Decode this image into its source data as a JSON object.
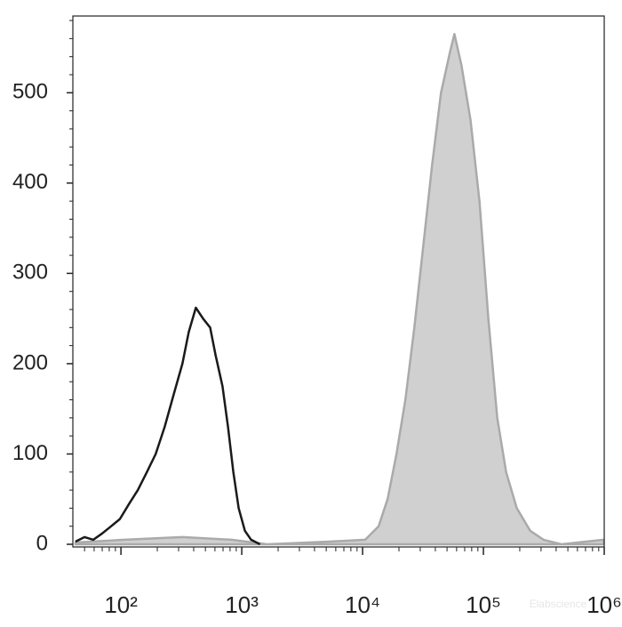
{
  "chart_data": {
    "type": "histogram-overlay",
    "xscale": "log",
    "xlim": [
      40,
      1000000
    ],
    "ylim": [
      0,
      585
    ],
    "xticks": [
      {
        "value": 100,
        "label": "10²"
      },
      {
        "value": 1000,
        "label": "10³"
      },
      {
        "value": 10000,
        "label": "10⁴"
      },
      {
        "value": 100000,
        "label": "10⁵"
      },
      {
        "value": 1000000,
        "label": "10⁶"
      }
    ],
    "xticks_minor": [
      50,
      60,
      70,
      80,
      90,
      200,
      300,
      400,
      500,
      600,
      700,
      800,
      900,
      2000,
      3000,
      4000,
      5000,
      6000,
      7000,
      8000,
      9000,
      20000,
      30000,
      40000,
      50000,
      60000,
      70000,
      80000,
      90000,
      200000,
      300000,
      400000,
      500000,
      600000,
      700000,
      800000,
      900000
    ],
    "yticks": [
      0,
      100,
      200,
      300,
      400,
      500
    ],
    "yticks_minor": [
      20,
      40,
      60,
      80,
      120,
      140,
      160,
      180,
      220,
      240,
      260,
      280,
      320,
      340,
      360,
      380,
      420,
      440,
      460,
      480,
      520,
      540,
      560,
      580
    ],
    "watermark": "Elabscience",
    "series": [
      {
        "color": "#aaaaaa",
        "fill": "#d0d0d0",
        "x": [
          42,
          107,
          323,
          821,
          1621,
          5330,
          10520,
          13580,
          16100,
          19070,
          22600,
          26800,
          31750,
          37650,
          44600,
          52860,
          57540,
          65900,
          78200,
          92700,
          109900,
          130100,
          154200,
          189100,
          244000,
          314600,
          442600,
          990000
        ],
        "values": [
          2,
          5,
          8,
          5,
          0,
          3,
          5,
          20,
          50,
          100,
          160,
          240,
          330,
          420,
          500,
          545,
          565,
          530,
          470,
          380,
          250,
          140,
          80,
          40,
          15,
          5,
          0,
          5
        ]
      },
      {
        "color": "#1a1a1a",
        "fill": null,
        "x": [
          42,
          50,
          59,
          70,
          83,
          98,
          117,
          138,
          164,
          194,
          230,
          272,
          323,
          364,
          417,
          478,
          547,
          606,
          693,
          769,
          851,
          942,
          1061,
          1195,
          1416
        ],
        "values": [
          3,
          8,
          5,
          12,
          20,
          28,
          45,
          60,
          80,
          100,
          130,
          165,
          200,
          235,
          262,
          250,
          240,
          210,
          175,
          130,
          80,
          40,
          15,
          5,
          0
        ]
      }
    ]
  }
}
